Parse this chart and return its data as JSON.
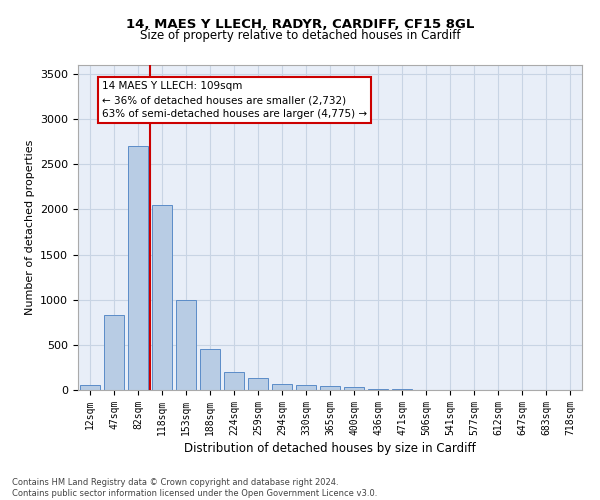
{
  "title1": "14, MAES Y LLECH, RADYR, CARDIFF, CF15 8GL",
  "title2": "Size of property relative to detached houses in Cardiff",
  "xlabel": "Distribution of detached houses by size in Cardiff",
  "ylabel": "Number of detached properties",
  "categories": [
    "12sqm",
    "47sqm",
    "82sqm",
    "118sqm",
    "153sqm",
    "188sqm",
    "224sqm",
    "259sqm",
    "294sqm",
    "330sqm",
    "365sqm",
    "400sqm",
    "436sqm",
    "471sqm",
    "506sqm",
    "541sqm",
    "577sqm",
    "612sqm",
    "647sqm",
    "683sqm",
    "718sqm"
  ],
  "values": [
    50,
    830,
    2700,
    2050,
    1000,
    450,
    200,
    130,
    70,
    55,
    40,
    35,
    10,
    8,
    5,
    4,
    3,
    2,
    2,
    2,
    1
  ],
  "bar_color": "#b8cce4",
  "bar_edge_color": "#5b8cc8",
  "red_line_x": 2.5,
  "annotation_text_line1": "14 MAES Y LLECH: 109sqm",
  "annotation_text_line2": "← 36% of detached houses are smaller (2,732)",
  "annotation_text_line3": "63% of semi-detached houses are larger (4,775) →",
  "annotation_box_color": "#ffffff",
  "annotation_box_edgecolor": "#cc0000",
  "red_line_color": "#cc0000",
  "grid_color": "#c8d4e4",
  "bg_color": "#e8eef8",
  "ylim": [
    0,
    3600
  ],
  "yticks": [
    0,
    500,
    1000,
    1500,
    2000,
    2500,
    3000,
    3500
  ],
  "footer_line1": "Contains HM Land Registry data © Crown copyright and database right 2024.",
  "footer_line2": "Contains public sector information licensed under the Open Government Licence v3.0."
}
